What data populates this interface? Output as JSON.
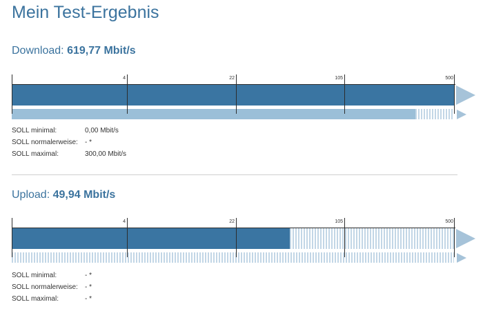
{
  "page": {
    "title": "Mein Test-Ergebnis",
    "colors": {
      "title": "#3b739e",
      "bar_dark": "#3a75a2",
      "bar_light": "#9bbfd8",
      "stripe_light": "#c2d6e6",
      "arrow": "#a6c3d9"
    }
  },
  "download": {
    "label": "Download:",
    "value": "619,77 Mbit/s",
    "scale_ticks": [
      "4",
      "22",
      "105",
      "500"
    ],
    "measured_fraction": 1.0,
    "soll_max_fraction": 0.913,
    "soll": [
      {
        "label": "SOLL minimal:",
        "value": "0,00 Mbit/s"
      },
      {
        "label": "SOLL normalerweise:",
        "value": "- *"
      },
      {
        "label": "SOLL maximal:",
        "value": "300,00 Mbit/s"
      }
    ]
  },
  "upload": {
    "label": "Upload:",
    "value": "49,94 Mbit/s",
    "scale_ticks": [
      "4",
      "22",
      "105",
      "500"
    ],
    "measured_fraction": 0.628,
    "soll_max_fraction": 0,
    "soll": [
      {
        "label": "SOLL minimal:",
        "value": "- *"
      },
      {
        "label": "SOLL normalerweise:",
        "value": "- *"
      },
      {
        "label": "SOLL maximal:",
        "value": "- *"
      }
    ]
  }
}
